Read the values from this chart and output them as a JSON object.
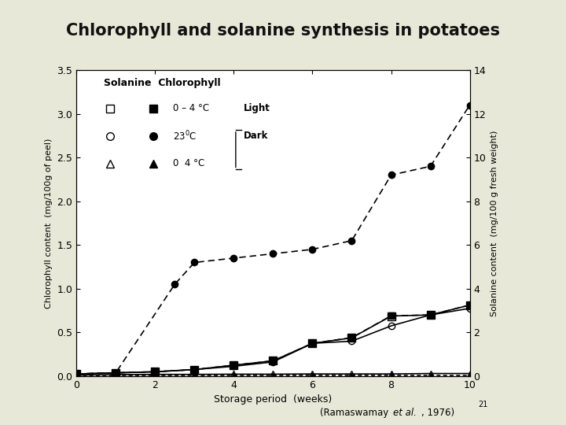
{
  "title": "Chlorophyll and solanine synthesis in potatoes",
  "title_bg": "#dce8c0",
  "title_border": "#a0b878",
  "xlabel": "Storage period  (weeks)",
  "ylabel_left": "Chlorophyll content  (mg/100g of peel)",
  "ylabel_right": "Solanine content  (mg/100 g fresh weight)",
  "xlim": [
    0,
    10
  ],
  "ylim_left": [
    0,
    3.5
  ],
  "ylim_right": [
    0,
    14
  ],
  "xticks": [
    0,
    2,
    4,
    6,
    8,
    10
  ],
  "yticks_left": [
    0.0,
    0.5,
    1.0,
    1.5,
    2.0,
    2.5,
    3.0,
    3.5
  ],
  "yticks_right": [
    0,
    2,
    4,
    6,
    8,
    10,
    12,
    14
  ],
  "bg_color": "#e8e8d8",
  "plot_bg": "#ffffff",
  "sol_light04_x": [
    0,
    1,
    2,
    3,
    4,
    5,
    6,
    7,
    8,
    9,
    10
  ],
  "sol_light04_y": [
    0.1,
    0.15,
    0.2,
    0.3,
    0.5,
    0.7,
    1.5,
    1.75,
    2.75,
    2.8,
    3.25
  ],
  "sol_dark23_x": [
    0,
    1,
    2,
    3,
    4,
    5,
    6,
    7,
    8,
    9,
    10
  ],
  "sol_dark23_y": [
    0.1,
    0.15,
    0.2,
    0.3,
    0.45,
    0.65,
    1.5,
    1.6,
    2.3,
    2.8,
    3.1
  ],
  "sol_dark04_x": [
    0,
    1,
    2,
    3,
    4,
    5,
    6,
    7,
    8,
    9,
    10
  ],
  "sol_dark04_y": [
    0.05,
    0.07,
    0.08,
    0.08,
    0.09,
    0.09,
    0.1,
    0.1,
    0.1,
    0.12,
    0.12
  ],
  "chl_light04_x": [
    0,
    1,
    2,
    3,
    4,
    5,
    6,
    7,
    8,
    9,
    10
  ],
  "chl_light04_y": [
    0.025,
    0.038,
    0.05,
    0.075,
    0.125,
    0.175,
    0.375,
    0.44,
    0.69,
    0.7,
    0.813
  ],
  "chl_dark23_x": [
    0,
    1,
    2.5,
    3,
    4,
    5,
    6,
    7,
    8,
    9,
    10
  ],
  "chl_dark23_y": [
    0.025,
    0.038,
    1.05,
    1.3,
    1.35,
    1.4,
    1.45,
    1.55,
    2.3,
    2.4,
    3.1
  ],
  "chl_dark04_x": [
    0,
    1,
    2,
    3,
    4,
    5,
    6,
    7,
    8,
    9,
    10
  ],
  "chl_dark04_y": [
    0.01,
    0.01,
    0.01,
    0.01,
    0.01,
    0.01,
    0.01,
    0.01,
    0.01,
    0.01,
    0.01
  ]
}
